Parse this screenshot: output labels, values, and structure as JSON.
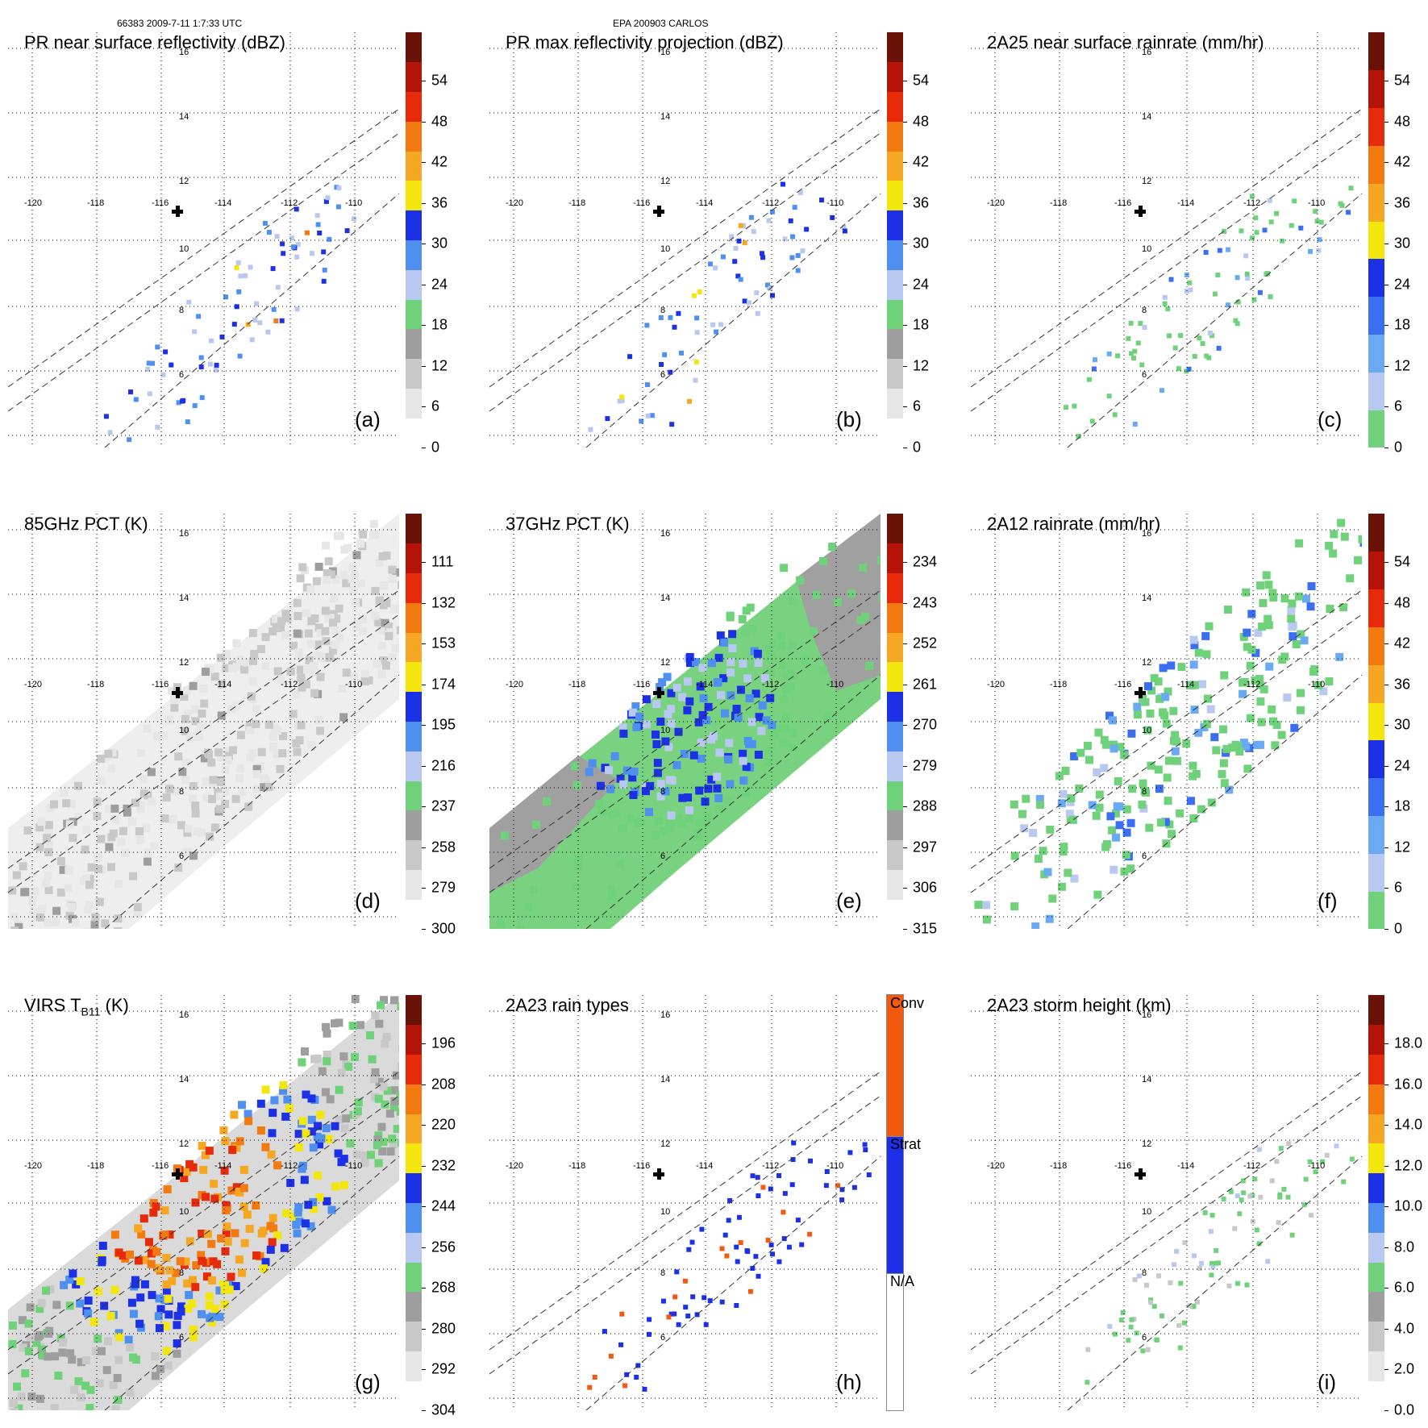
{
  "header": {
    "orbit_info": "66383 2009-7-11 1:7:33 UTC",
    "storm_info": "EPA 200903 CARLOS"
  },
  "map_axes": {
    "lon_labels": [
      "-120",
      "-118",
      "-116",
      "-114",
      "-112",
      "-110"
    ],
    "lat_labels": [
      "16",
      "14",
      "12",
      "10",
      "8",
      "6"
    ]
  },
  "panels": [
    {
      "id": "a",
      "title": "PR near surface reflectivity (dBZ)",
      "label": "(a)",
      "colorbar": "refl",
      "swath": "narrow",
      "style": "refl"
    },
    {
      "id": "b",
      "title": "PR max reflectivity projection (dBZ)",
      "label": "(b)",
      "colorbar": "refl",
      "swath": "narrow",
      "style": "reflmax"
    },
    {
      "id": "c",
      "title": "2A25 near surface rainrate (mm/hr)",
      "label": "(c)",
      "colorbar": "rain",
      "swath": "narrow",
      "style": "rain"
    },
    {
      "id": "d",
      "title": "85GHz PCT (K)",
      "label": "(d)",
      "colorbar": "pct85",
      "swath": "wide",
      "style": "pct85"
    },
    {
      "id": "e",
      "title": "37GHz PCT (K)",
      "label": "(e)",
      "colorbar": "pct37",
      "swath": "wide",
      "style": "pct37"
    },
    {
      "id": "f",
      "title": "2A12 rainrate (mm/hr)",
      "label": "(f)",
      "colorbar": "rain",
      "swath": "wide",
      "style": "rain12"
    },
    {
      "id": "g",
      "title": "VIRS T",
      "title_sub": "B11",
      "title_suffix": " (K)",
      "label": "(g)",
      "colorbar": "virs",
      "swath": "wide",
      "style": "virs"
    },
    {
      "id": "h",
      "title": "2A23 rain types",
      "label": "(h)",
      "colorbar": "types",
      "swath": "narrow",
      "style": "types"
    },
    {
      "id": "i",
      "title": "2A23 storm height (km)",
      "label": "(i)",
      "colorbar": "height",
      "swath": "narrow",
      "style": "height"
    }
  ],
  "colorbars": {
    "refl": {
      "ticks": [
        "0",
        "6",
        "12",
        "18",
        "24",
        "30",
        "36",
        "42",
        "48",
        "54"
      ],
      "colors": [
        "#ffffff",
        "#e6e6e6",
        "#c8c8c8",
        "#9e9e9e",
        "#6fd27a",
        "#b8c8f0",
        "#4f8ff0",
        "#1c30e6",
        "#f2e60d",
        "#f5a623",
        "#f27a10",
        "#e62a0a",
        "#b41408",
        "#6a1208"
      ]
    },
    "rain": {
      "ticks": [
        "0",
        "6",
        "12",
        "18",
        "24",
        "30",
        "36",
        "42",
        "48",
        "54"
      ],
      "colors": [
        "#6fd27a",
        "#b8c8f0",
        "#6aaaf5",
        "#3b6ef0",
        "#1c30e6",
        "#f2e60d",
        "#f5a623",
        "#f27a10",
        "#e62a0a",
        "#b41408",
        "#6a1208"
      ]
    },
    "pct85": {
      "ticks": [
        "300",
        "279",
        "258",
        "237",
        "216",
        "195",
        "174",
        "153",
        "132",
        "111"
      ],
      "colors": [
        "#ffffff",
        "#e6e6e6",
        "#c8c8c8",
        "#9e9e9e",
        "#6fd27a",
        "#b8c8f0",
        "#4f8ff0",
        "#1c30e6",
        "#f2e60d",
        "#f5a623",
        "#f27a10",
        "#e62a0a",
        "#b41408",
        "#6a1208"
      ]
    },
    "pct37": {
      "ticks": [
        "315",
        "306",
        "297",
        "288",
        "279",
        "270",
        "261",
        "252",
        "243",
        "234"
      ],
      "colors": [
        "#ffffff",
        "#e6e6e6",
        "#c8c8c8",
        "#9e9e9e",
        "#6fd27a",
        "#b8c8f0",
        "#4f8ff0",
        "#1c30e6",
        "#f2e60d",
        "#f5a623",
        "#f27a10",
        "#e62a0a",
        "#b41408",
        "#6a1208"
      ]
    },
    "virs": {
      "ticks": [
        "304",
        "292",
        "280",
        "268",
        "256",
        "244",
        "232",
        "220",
        "208",
        "196"
      ],
      "colors": [
        "#ffffff",
        "#e6e6e6",
        "#c8c8c8",
        "#9e9e9e",
        "#6fd27a",
        "#b8c8f0",
        "#4f8ff0",
        "#1c30e6",
        "#f2e60d",
        "#f5a623",
        "#f27a10",
        "#e62a0a",
        "#b41408",
        "#6a1208"
      ]
    },
    "height": {
      "ticks": [
        "0.0",
        "2.0",
        "4.0",
        "6.0",
        "8.0",
        "10.0",
        "12.0",
        "14.0",
        "16.0",
        "18.0"
      ],
      "colors": [
        "#ffffff",
        "#e6e6e6",
        "#c8c8c8",
        "#9e9e9e",
        "#6fd27a",
        "#b8c8f0",
        "#4f8ff0",
        "#1c30e6",
        "#f2e60d",
        "#f5a623",
        "#f27a10",
        "#e62a0a",
        "#b41408",
        "#6a1208"
      ]
    },
    "types": {
      "ticks": [
        "N/A",
        "Strat",
        "Conv"
      ],
      "colors": [
        "#ffffff",
        "#1c30e6",
        "#f25a10"
      ]
    }
  }
}
